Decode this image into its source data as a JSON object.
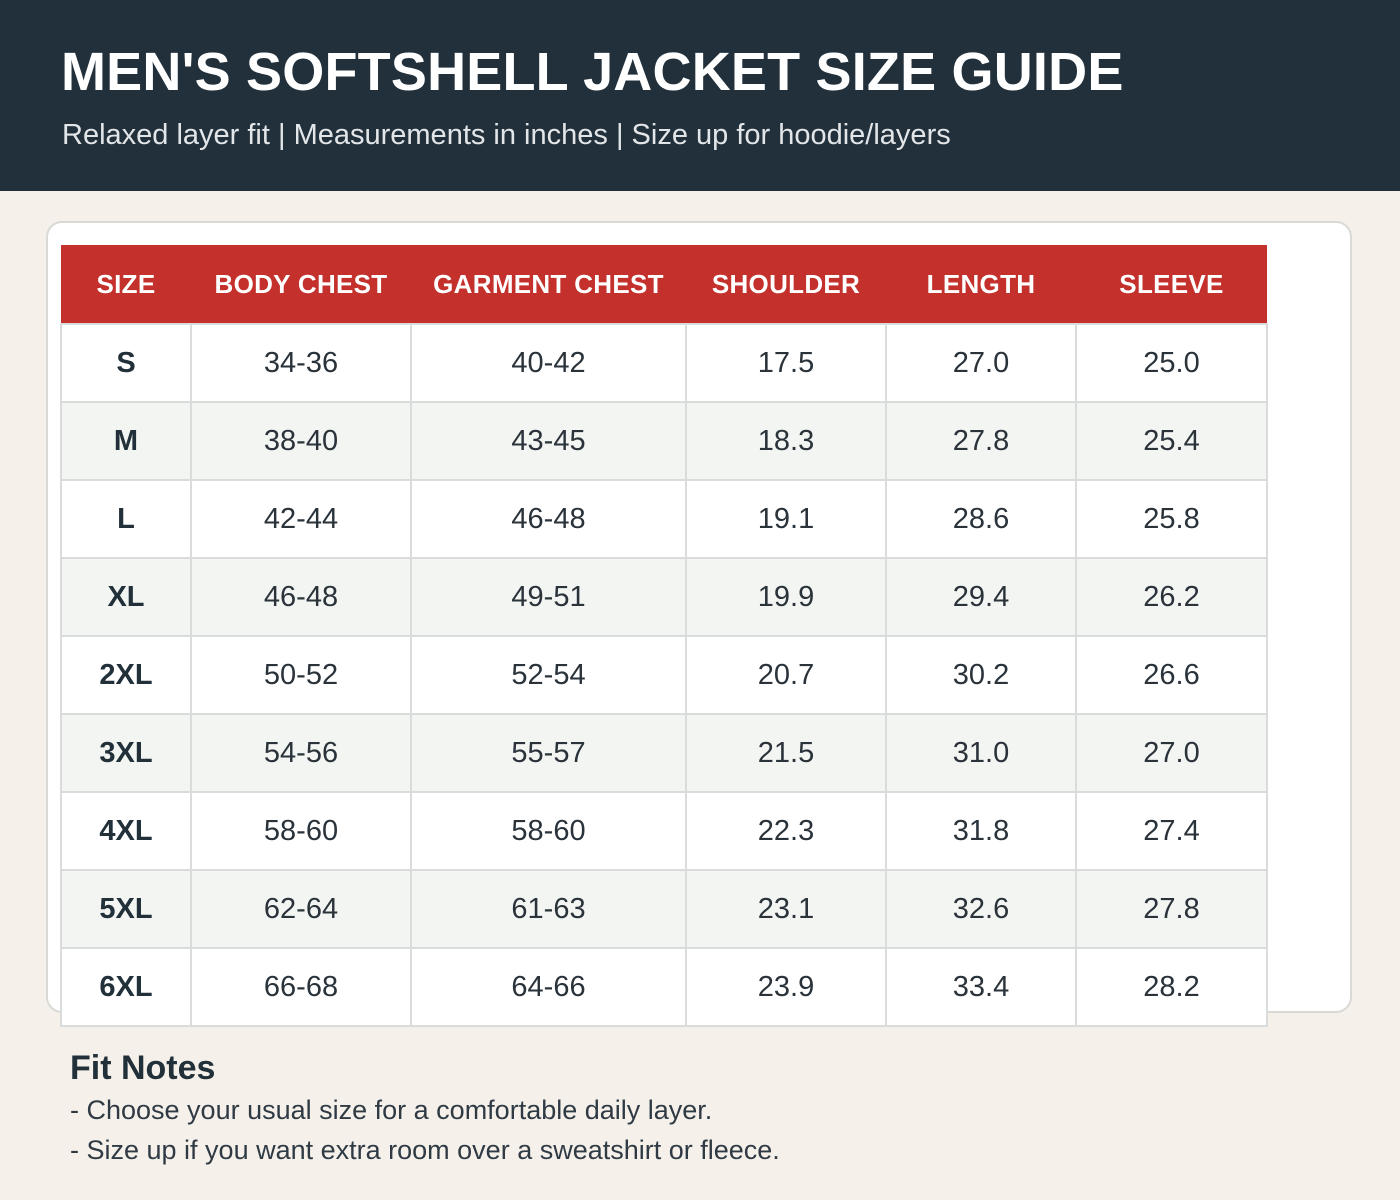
{
  "header": {
    "title": "MEN'S SOFTSHELL JACKET SIZE GUIDE",
    "subtitle": "Relaxed layer fit | Measurements in inches | Size up for hoodie/layers",
    "background_color": "#22303b"
  },
  "table": {
    "header_color": "#c4302b",
    "columns": [
      "SIZE",
      "BODY CHEST",
      "GARMENT CHEST",
      "SHOULDER",
      "LENGTH",
      "SLEEVE"
    ],
    "rows": [
      [
        "S",
        "34-36",
        "40-42",
        "17.5",
        "27.0",
        "25.0"
      ],
      [
        "M",
        "38-40",
        "43-45",
        "18.3",
        "27.8",
        "25.4"
      ],
      [
        "L",
        "42-44",
        "46-48",
        "19.1",
        "28.6",
        "25.8"
      ],
      [
        "XL",
        "46-48",
        "49-51",
        "19.9",
        "29.4",
        "26.2"
      ],
      [
        "2XL",
        "50-52",
        "52-54",
        "20.7",
        "30.2",
        "26.6"
      ],
      [
        "3XL",
        "54-56",
        "55-57",
        "21.5",
        "31.0",
        "27.0"
      ],
      [
        "4XL",
        "58-60",
        "58-60",
        "22.3",
        "31.8",
        "27.4"
      ],
      [
        "5XL",
        "62-64",
        "61-63",
        "23.1",
        "32.6",
        "27.8"
      ],
      [
        "6XL",
        "66-68",
        "64-66",
        "23.9",
        "33.4",
        "28.2"
      ]
    ]
  },
  "notes": {
    "title": "Fit Notes",
    "lines": [
      "- Choose your usual size for a comfortable daily layer.",
      "- Size up if you want extra room over a sweatshirt or fleece."
    ]
  }
}
